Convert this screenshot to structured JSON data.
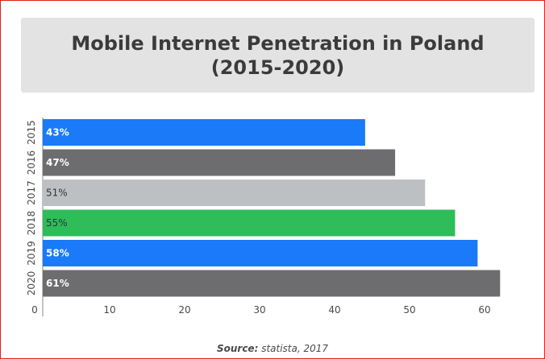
{
  "chart_data": {
    "type": "bar",
    "orientation": "horizontal",
    "title_lines": [
      "Mobile Internet Penetration in Poland",
      "(2015-2020)"
    ],
    "categories": [
      "2015",
      "2016",
      "2017",
      "2018",
      "2019",
      "2020"
    ],
    "values": [
      43,
      47,
      51,
      55,
      58,
      61
    ],
    "value_labels": [
      "43%",
      "47%",
      "51%",
      "55%",
      "58%",
      "61%"
    ],
    "bar_colors": [
      "#1a7af8",
      "#6d6d6f",
      "#bdc0c3",
      "#2ebd59",
      "#1a7af8",
      "#6d6d6f"
    ],
    "label_colors": [
      "#ffffff",
      "#ffffff",
      "#333333",
      "#333333",
      "#ffffff",
      "#ffffff"
    ],
    "xlim": [
      0,
      60
    ],
    "x_ticks": [
      "0",
      "10",
      "20",
      "30",
      "40",
      "50",
      "60"
    ],
    "xlabel": "",
    "ylabel": ""
  },
  "source": {
    "label": "Source:",
    "text": "statista, 2017"
  }
}
